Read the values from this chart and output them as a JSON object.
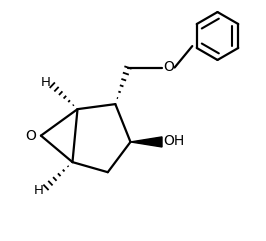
{
  "bg_color": "#ffffff",
  "line_color": "#000000",
  "line_width": 1.6,
  "fig_width": 2.66,
  "fig_height": 2.41,
  "dpi": 100,
  "xlim": [
    0.0,
    10.0
  ],
  "ylim": [
    0.0,
    9.5
  ]
}
